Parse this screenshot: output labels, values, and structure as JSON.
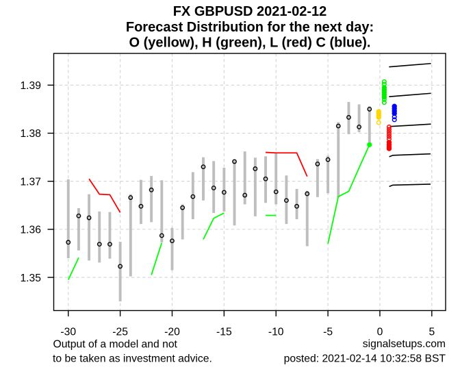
{
  "title": {
    "line1": "FX GBPUSD 2021-02-12",
    "line2": "Forecast Distribution for the next day:",
    "line3": "O (yellow), H (green), L (red) C (blue)."
  },
  "footer": {
    "disclaimer_line1": "Output of a model and not",
    "disclaimer_line2": "to be taken as investment advice.",
    "website": "signalsetups.com",
    "posted": "posted: 2021-02-14 10:32:58 BST"
  },
  "chart_data": {
    "type": "scatter",
    "description": "Daily GBPUSD high-low range bars (gray) with close markers (black open circles), green/red signal line segments, and a forecast distribution for the next day shown as clusters of colored circles: Open (yellow), High (green), Low (red), Close (blue), plus black forecast quantile lines.",
    "title": "FX GBPUSD 2021-02-12 — Forecast Distribution for the next day",
    "xlabel": "",
    "ylabel": "",
    "grid": true,
    "legend_position": "in-title",
    "xlim": [
      -31.4,
      6.33
    ],
    "ylim": [
      1.3431,
      1.3966
    ],
    "x_ticks": [
      -30,
      -25,
      -20,
      -15,
      -10,
      -5,
      0,
      5
    ],
    "y_ticks": [
      1.35,
      1.36,
      1.37,
      1.38,
      1.39
    ],
    "y_tick_labels": [
      "1.35",
      "1.36",
      "1.37",
      "1.38",
      "1.39"
    ],
    "bars": [
      {
        "x": -30,
        "low": 1.354,
        "high": 1.3704,
        "close": 1.3573
      },
      {
        "x": -29,
        "low": 1.3556,
        "high": 1.3644,
        "close": 1.3628
      },
      {
        "x": -28,
        "low": 1.3535,
        "high": 1.3673,
        "close": 1.3624
      },
      {
        "x": -27,
        "low": 1.3531,
        "high": 1.3637,
        "close": 1.3569
      },
      {
        "x": -26,
        "low": 1.3539,
        "high": 1.3636,
        "close": 1.3569
      },
      {
        "x": -25,
        "low": 1.345,
        "high": 1.3574,
        "close": 1.3523
      },
      {
        "x": -24,
        "low": 1.3502,
        "high": 1.3673,
        "close": 1.3666
      },
      {
        "x": -23,
        "low": 1.3611,
        "high": 1.3703,
        "close": 1.3648
      },
      {
        "x": -22,
        "low": 1.3615,
        "high": 1.3711,
        "close": 1.3682
      },
      {
        "x": -21,
        "low": 1.3573,
        "high": 1.3702,
        "close": 1.3587
      },
      {
        "x": -20,
        "low": 1.3515,
        "high": 1.3603,
        "close": 1.3576
      },
      {
        "x": -19,
        "low": 1.3579,
        "high": 1.3652,
        "close": 1.3645
      },
      {
        "x": -18,
        "low": 1.3621,
        "high": 1.3719,
        "close": 1.3668
      },
      {
        "x": -17,
        "low": 1.366,
        "high": 1.375,
        "close": 1.373
      },
      {
        "x": -16,
        "low": 1.3634,
        "high": 1.3742,
        "close": 1.3686
      },
      {
        "x": -15,
        "low": 1.3637,
        "high": 1.3728,
        "close": 1.3677
      },
      {
        "x": -14,
        "low": 1.3608,
        "high": 1.3744,
        "close": 1.3741
      },
      {
        "x": -13,
        "low": 1.3652,
        "high": 1.3762,
        "close": 1.3671
      },
      {
        "x": -12,
        "low": 1.3627,
        "high": 1.3749,
        "close": 1.3726
      },
      {
        "x": -11,
        "low": 1.3655,
        "high": 1.3752,
        "close": 1.3705
      },
      {
        "x": -10,
        "low": 1.3652,
        "high": 1.376,
        "close": 1.3678
      },
      {
        "x": -9,
        "low": 1.3611,
        "high": 1.3712,
        "close": 1.366
      },
      {
        "x": -8,
        "low": 1.3621,
        "high": 1.3684,
        "close": 1.3648
      },
      {
        "x": -7,
        "low": 1.3565,
        "high": 1.368,
        "close": 1.3674
      },
      {
        "x": -6,
        "low": 1.3667,
        "high": 1.3746,
        "close": 1.3736
      },
      {
        "x": -5,
        "low": 1.3675,
        "high": 1.3753,
        "close": 1.3745
      },
      {
        "x": -4,
        "low": 1.3667,
        "high": 1.3823,
        "close": 1.3815
      },
      {
        "x": -3,
        "low": 1.3798,
        "high": 1.3865,
        "close": 1.3833
      },
      {
        "x": -2,
        "low": 1.3802,
        "high": 1.386,
        "close": 1.3813
      },
      {
        "x": -1,
        "low": 1.3778,
        "high": 1.3856,
        "close": 1.385
      }
    ],
    "signal_lines": [
      {
        "color": "#00FF00",
        "points": [
          [
            -30,
            1.3495
          ],
          [
            -29,
            1.3541
          ]
        ]
      },
      {
        "color": "#FF0000",
        "points": [
          [
            -28,
            1.3705
          ],
          [
            -27,
            1.3673
          ],
          [
            -26,
            1.3672
          ],
          [
            -25,
            1.3635
          ]
        ]
      },
      {
        "color": "#00FF00",
        "points": [
          [
            -22,
            1.3505
          ],
          [
            -21,
            1.3572
          ]
        ]
      },
      {
        "color": "#00FF00",
        "points": [
          [
            -17,
            1.3579
          ],
          [
            -16,
            1.3623
          ],
          [
            -15,
            1.3634
          ]
        ]
      },
      {
        "color": "#00FF00",
        "points": [
          [
            -11,
            1.3629
          ],
          [
            -10,
            1.3629
          ]
        ]
      },
      {
        "color": "#FF0000",
        "points": [
          [
            -11,
            1.376
          ],
          [
            -10,
            1.3759
          ],
          [
            -9,
            1.3759
          ],
          [
            -8,
            1.3759
          ],
          [
            -7,
            1.371
          ]
        ]
      },
      {
        "color": "#00FF00",
        "points": [
          [
            -5,
            1.357
          ],
          [
            -4,
            1.3668
          ],
          [
            -3,
            1.3679
          ],
          [
            -2,
            1.3728
          ],
          [
            -1,
            1.3776
          ]
        ]
      }
    ],
    "last_point": {
      "x": -1,
      "value": 1.3776,
      "color": "#00FF00"
    },
    "forecast_clusters": [
      {
        "name": "open",
        "label": "O",
        "color": "#FFD700",
        "x": -0.11,
        "filled_values": [
          1.3845,
          1.3841,
          1.3837,
          1.3833
        ],
        "open_values": [
          1.3822
        ]
      },
      {
        "name": "high",
        "label": "H",
        "color": "#00EE00",
        "x": 0.42,
        "filled_values": [
          1.3895,
          1.389,
          1.3885,
          1.388,
          1.3875
        ],
        "open_values": [
          1.3907,
          1.3902,
          1.387,
          1.3864
        ]
      },
      {
        "name": "low",
        "label": "L",
        "color": "#FF0000",
        "x": 0.89,
        "filled_values": [
          1.3781,
          1.3776,
          1.3771,
          1.3768
        ],
        "open_values": [
          1.3813,
          1.3808,
          1.3803,
          1.3798,
          1.3793,
          1.3788
        ]
      },
      {
        "name": "close",
        "label": "C",
        "color": "#0000FF",
        "x": 1.4,
        "filled_values": [
          1.3856,
          1.3851,
          1.3846,
          1.3841
        ],
        "open_values": [
          1.3834,
          1.3828
        ]
      }
    ],
    "forecast_quantile_lines": [
      {
        "points": [
          [
            0.88,
            1.3938
          ],
          [
            2.6,
            1.3941
          ],
          [
            4.92,
            1.3945
          ]
        ]
      },
      {
        "points": [
          [
            0.88,
            1.3876
          ],
          [
            2.6,
            1.3879
          ],
          [
            4.92,
            1.3883
          ]
        ]
      },
      {
        "points": [
          [
            0.97,
            1.3814
          ],
          [
            2.6,
            1.3816
          ],
          [
            4.92,
            1.3819
          ]
        ]
      },
      {
        "points": [
          [
            0.9,
            1.3751
          ],
          [
            1.25,
            1.3754
          ],
          [
            4.88,
            1.3757
          ]
        ]
      },
      {
        "points": [
          [
            0.9,
            1.3689
          ],
          [
            1.25,
            1.3692
          ],
          [
            4.88,
            1.3694
          ]
        ]
      }
    ],
    "colors": {
      "bar": "#BEBEBE",
      "close_marker": "#000000",
      "open_forecast": "#FFD700",
      "high_forecast": "#00EE00",
      "low_forecast": "#FF0000",
      "close_forecast": "#0000FF",
      "signal_up": "#00FF00",
      "signal_down": "#FF0000",
      "quantile_line": "#000000",
      "grid": "#D3D3D3",
      "box": "#000000",
      "background": "#FFFFFF"
    }
  }
}
